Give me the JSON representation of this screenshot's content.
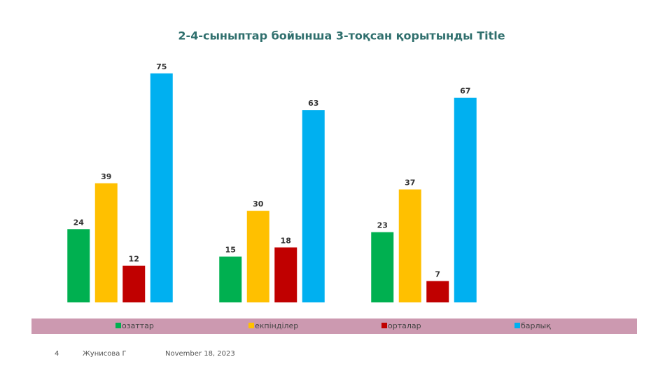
{
  "chart_data": {
    "type": "bar",
    "title": "2-4-сыныптар бойынша 3-тоқсан қорытынды Title",
    "categories": [
      null,
      null,
      null,
      null
    ],
    "series": [
      {
        "name": "озаттар",
        "color": "#00b050",
        "values": [
          24,
          15,
          23,
          null
        ]
      },
      {
        "name": "екпінділер",
        "color": "#ffc000",
        "values": [
          39,
          30,
          37,
          null
        ]
      },
      {
        "name": "орталар",
        "color": "#c00000",
        "values": [
          12,
          18,
          7,
          null
        ]
      },
      {
        "name": "барлық",
        "color": "#00b0f0",
        "values": [
          75,
          63,
          67,
          null
        ]
      }
    ],
    "ylim": [
      0,
      80
    ],
    "legend": "bottom"
  },
  "footer": {
    "page": "4",
    "author": "Жунисова Г",
    "date": "November 18, 2023"
  }
}
